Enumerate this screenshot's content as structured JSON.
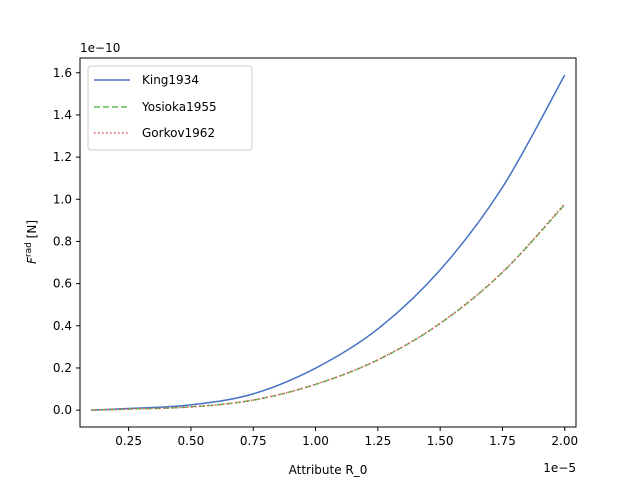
{
  "chart_data": {
    "type": "line",
    "title": "",
    "xlabel": "Attribute R_0",
    "ylabel": "F^rad [N]",
    "ylabel_main": "F",
    "ylabel_sup": "rad",
    "ylabel_unit": " [N]",
    "x_offset_label": "1e−5",
    "y_offset_label": "1e−10",
    "xlim": [
      0.055,
      2.045
    ],
    "ylim": [
      -0.08,
      1.67
    ],
    "x_ticks": [
      0.25,
      0.5,
      0.75,
      1.0,
      1.25,
      1.5,
      1.75,
      2.0
    ],
    "x_tick_labels": [
      "0.25",
      "0.50",
      "0.75",
      "1.00",
      "1.25",
      "1.50",
      "1.75",
      "2.00"
    ],
    "y_ticks": [
      0.0,
      0.2,
      0.4,
      0.6,
      0.8,
      1.0,
      1.2,
      1.4,
      1.6
    ],
    "y_tick_labels": [
      "0.0",
      "0.2",
      "0.4",
      "0.6",
      "0.8",
      "1.0",
      "1.2",
      "1.4",
      "1.6"
    ],
    "grid": false,
    "legend_position": "top-left",
    "x": [
      0.1,
      0.25,
      0.5,
      0.75,
      1.0,
      1.25,
      1.5,
      1.75,
      2.0
    ],
    "series": [
      {
        "name": "King1934",
        "color": "#4472c4",
        "style": "solid",
        "values": [
          0.0002,
          0.0078,
          0.0249,
          0.0772,
          0.199,
          0.385,
          0.665,
          1.057,
          1.59
        ]
      },
      {
        "name": "Yosioka1955",
        "color": "#5cbf5c",
        "style": "dashed",
        "values": [
          0.0001,
          0.0048,
          0.0153,
          0.0475,
          0.122,
          0.238,
          0.411,
          0.653,
          0.975
        ]
      },
      {
        "name": "Gorkov1962",
        "color": "#e05252",
        "style": "dotted",
        "values": [
          0.0001,
          0.0049,
          0.0155,
          0.0478,
          0.1225,
          0.239,
          0.412,
          0.6545,
          0.979
        ]
      }
    ]
  }
}
